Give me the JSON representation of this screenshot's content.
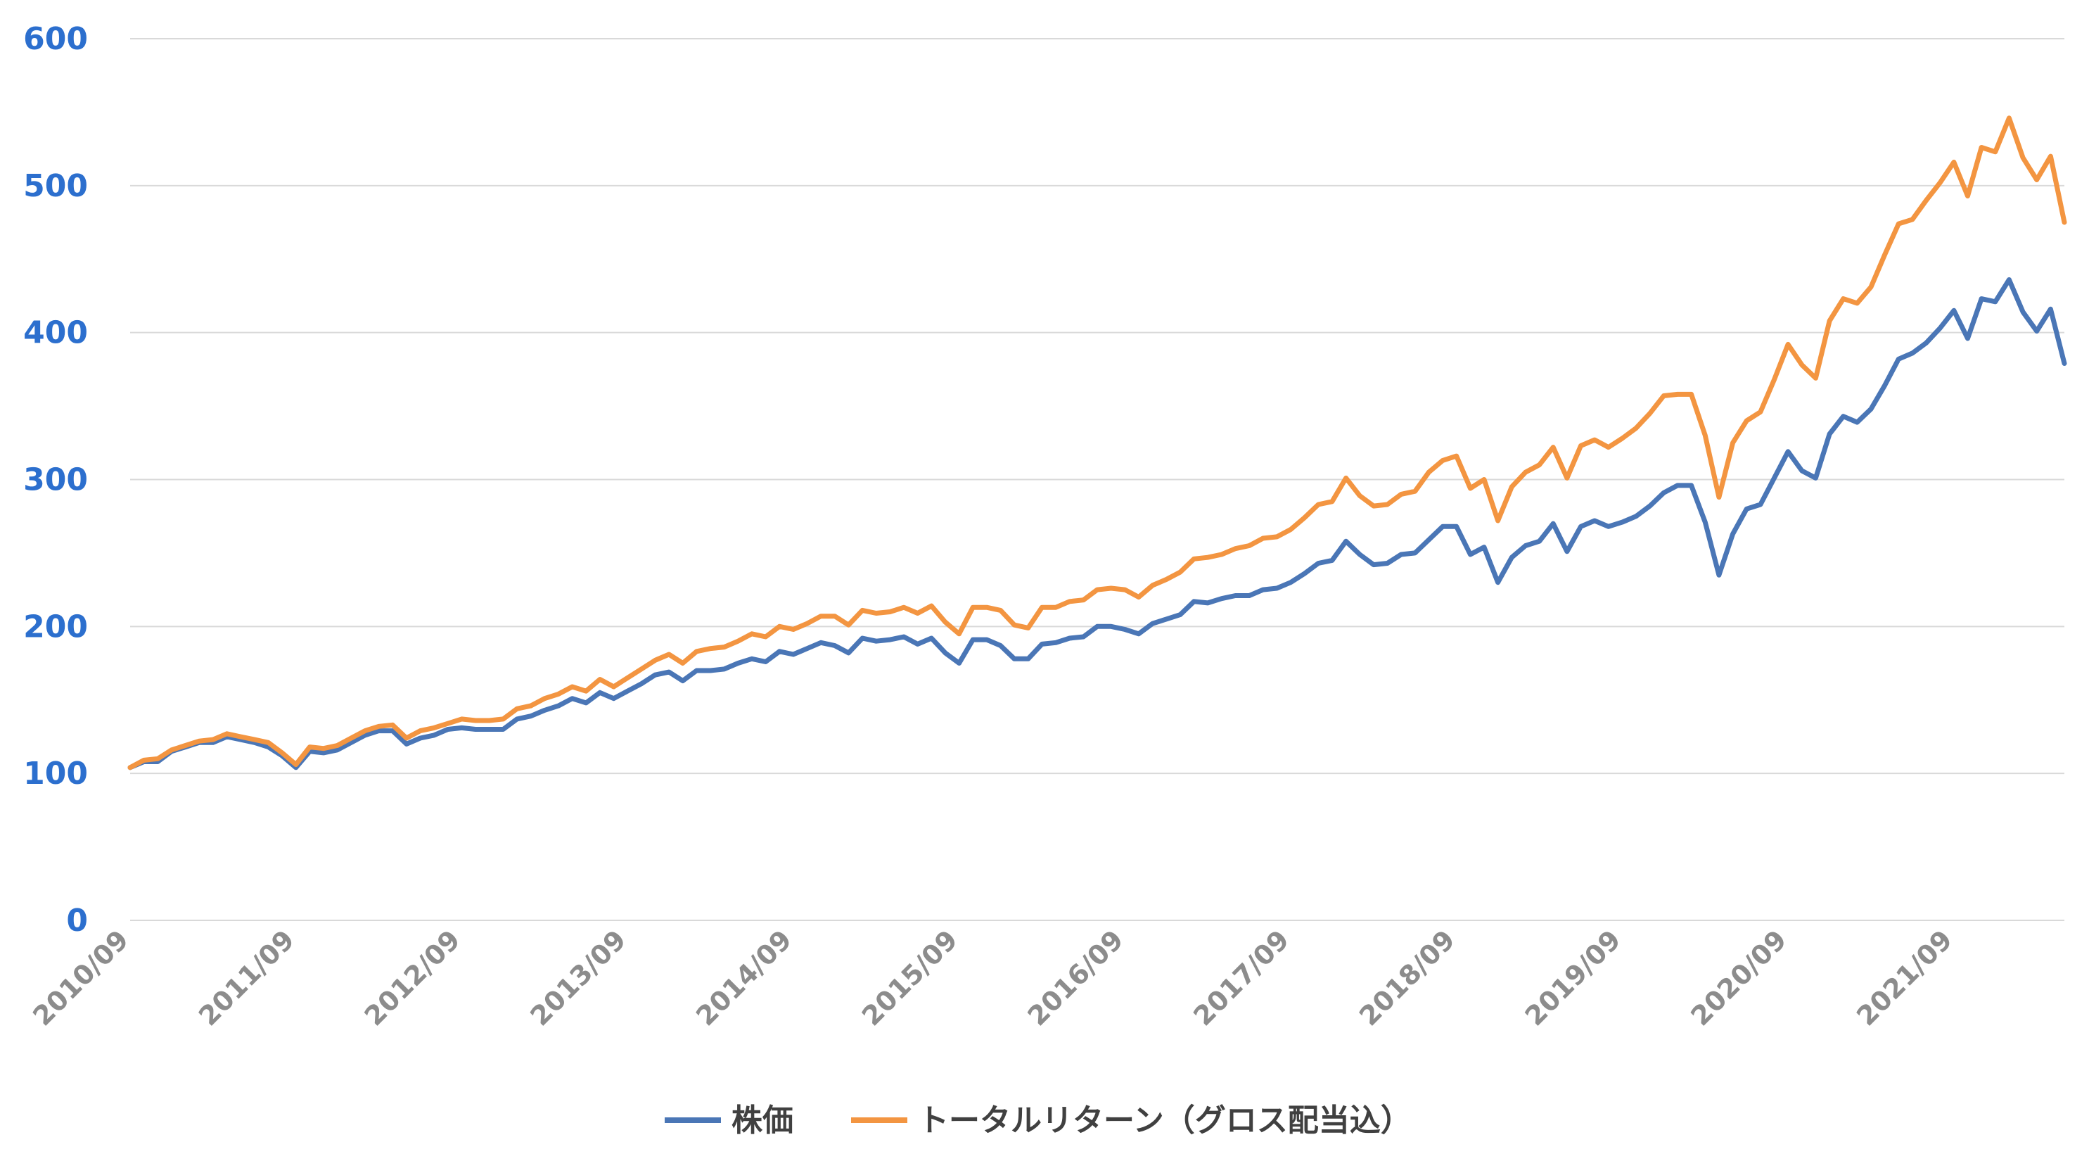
{
  "chart_data": {
    "type": "line",
    "y_ticks": [
      "0",
      "100",
      "200",
      "300",
      "400",
      "500",
      "600"
    ],
    "ylim": [
      0,
      600
    ],
    "x_tick_labels": [
      "2010/09",
      "2011/09",
      "2012/09",
      "2013/09",
      "2014/09",
      "2015/09",
      "2016/09",
      "2017/09",
      "2018/09",
      "2019/09",
      "2020/09",
      "2021/09"
    ],
    "x_start": "2010/09",
    "grid": true,
    "legend_position": "bottom",
    "colors": {
      "series1": "#4a76b6",
      "series2": "#f39541",
      "ytick": "#2c6fce",
      "grid": "#d9d9d9",
      "xtick": "#8c8c8c"
    },
    "series": [
      {
        "name": "株価",
        "values": [
          104,
          108,
          108,
          115,
          118,
          121,
          121,
          125,
          123,
          121,
          118,
          112,
          104,
          115,
          114,
          116,
          121,
          126,
          129,
          129,
          120,
          124,
          126,
          130,
          131,
          130,
          130,
          130,
          137,
          139,
          143,
          146,
          151,
          148,
          155,
          151,
          156,
          161,
          167,
          169,
          163,
          170,
          170,
          171,
          175,
          178,
          176,
          183,
          181,
          185,
          189,
          187,
          182,
          192,
          190,
          191,
          193,
          188,
          192,
          182,
          175,
          191,
          191,
          187,
          178,
          178,
          188,
          189,
          192,
          193,
          200,
          200,
          198,
          195,
          202,
          205,
          208,
          217,
          216,
          219,
          221,
          221,
          225,
          226,
          230,
          236,
          243,
          245,
          258,
          249,
          242,
          243,
          249,
          250,
          259,
          268,
          268,
          249,
          254,
          230,
          247,
          255,
          258,
          270,
          251,
          268,
          272,
          268,
          271,
          275,
          282,
          291,
          296,
          296,
          271,
          235,
          263,
          280,
          283,
          301,
          319,
          306,
          301,
          331,
          343,
          339,
          348,
          364,
          382,
          386,
          393,
          403,
          415,
          396,
          423,
          421,
          436,
          414,
          401,
          416,
          379
        ]
      },
      {
        "name": "トータルリターン（グロス配当込）",
        "values": [
          104,
          109,
          110,
          116,
          119,
          122,
          123,
          127,
          125,
          123,
          121,
          114,
          106,
          118,
          117,
          119,
          124,
          129,
          132,
          133,
          124,
          129,
          131,
          134,
          137,
          136,
          136,
          137,
          144,
          146,
          151,
          154,
          159,
          156,
          164,
          159,
          165,
          171,
          177,
          181,
          175,
          183,
          185,
          186,
          190,
          195,
          193,
          200,
          198,
          202,
          207,
          207,
          201,
          211,
          209,
          210,
          213,
          209,
          214,
          203,
          195,
          213,
          213,
          211,
          201,
          199,
          213,
          213,
          217,
          218,
          225,
          226,
          225,
          220,
          228,
          232,
          237,
          246,
          247,
          249,
          253,
          255,
          260,
          261,
          266,
          274,
          283,
          285,
          301,
          289,
          282,
          283,
          290,
          292,
          305,
          313,
          316,
          294,
          300,
          272,
          295,
          305,
          310,
          322,
          301,
          323,
          327,
          322,
          328,
          335,
          345,
          357,
          358,
          358,
          330,
          288,
          325,
          340,
          346,
          368,
          392,
          378,
          369,
          408,
          423,
          420,
          431,
          453,
          474,
          477,
          490,
          502,
          516,
          493,
          526,
          523,
          546,
          519,
          504,
          520,
          475
        ]
      }
    ]
  }
}
